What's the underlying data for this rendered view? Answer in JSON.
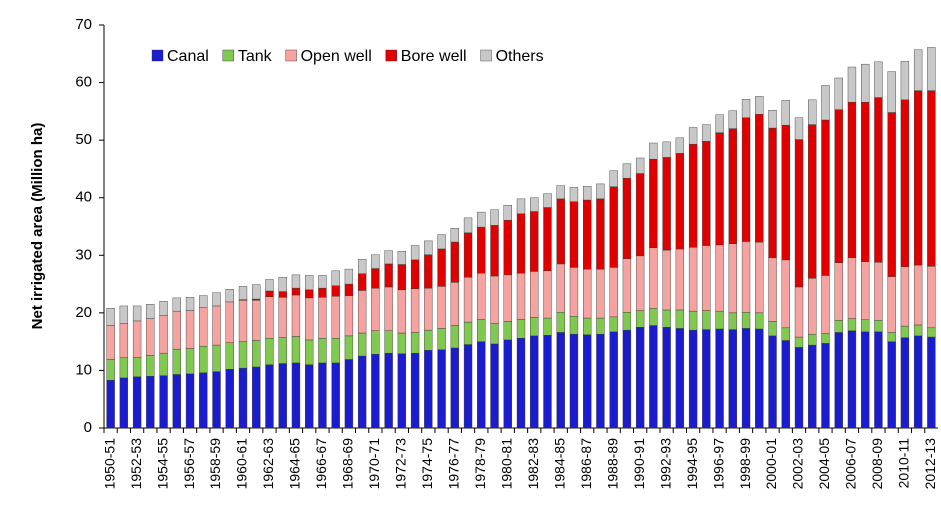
{
  "chart_data": {
    "type": "stacked_bar",
    "y_label": "Net irrigated area (Million ha)",
    "categories": [
      "1950-51",
      null,
      "1952-53",
      null,
      "1954-55",
      null,
      "1956-57",
      null,
      "1958-59",
      null,
      "1960-61",
      null,
      "1962-63",
      null,
      "1964-65",
      null,
      "1966-67",
      null,
      "1968-69",
      null,
      "1970-71",
      null,
      "1972-73",
      null,
      "1974-75",
      null,
      "1976-77",
      null,
      "1978-79",
      null,
      "1980-81",
      null,
      "1982-83",
      null,
      "1984-85",
      null,
      "1986-87",
      null,
      "1988-89",
      null,
      "1990-91",
      null,
      "1992-93",
      null,
      "1994-95",
      null,
      "1996-97",
      null,
      "1998-99",
      null,
      "2000-01",
      null,
      "2002-03",
      null,
      "2004-05",
      null,
      "2006-07",
      null,
      "2008-09",
      null,
      "2010-11",
      null,
      "2012-13"
    ],
    "series": [
      {
        "name": "Canal",
        "color": "#1c1ccf",
        "values": [
          8.3,
          8.7,
          8.9,
          9.0,
          9.1,
          9.3,
          9.4,
          9.6,
          9.8,
          10.2,
          10.4,
          10.6,
          11.0,
          11.2,
          11.3,
          11.0,
          11.3,
          11.3,
          11.9,
          12.5,
          12.8,
          13.0,
          12.9,
          13.0,
          13.5,
          13.6,
          13.9,
          14.5,
          15.0,
          14.6,
          15.3,
          15.6,
          16.0,
          16.1,
          16.6,
          16.3,
          16.2,
          16.3,
          16.7,
          17.0,
          17.5,
          17.8,
          17.5,
          17.3,
          17.0,
          17.1,
          17.2,
          17.1,
          17.3,
          17.2,
          16.0,
          15.2,
          14.0,
          14.4,
          14.7,
          16.6,
          16.9,
          16.7,
          16.7,
          15.0,
          15.7,
          16.0,
          15.8
        ]
      },
      {
        "name": "Tank",
        "color": "#80c850",
        "values": [
          3.6,
          3.5,
          3.4,
          3.6,
          3.9,
          4.4,
          4.4,
          4.6,
          4.6,
          4.6,
          4.6,
          4.6,
          4.6,
          4.5,
          4.6,
          4.3,
          4.3,
          4.3,
          4.1,
          4.0,
          4.1,
          3.9,
          3.6,
          3.6,
          3.5,
          3.7,
          3.9,
          3.9,
          3.9,
          3.6,
          3.2,
          3.3,
          3.2,
          3.0,
          3.5,
          3.1,
          2.9,
          2.8,
          2.6,
          3.1,
          2.9,
          3.0,
          3.0,
          3.2,
          3.3,
          3.3,
          3.1,
          2.9,
          2.8,
          2.8,
          2.5,
          2.2,
          1.8,
          1.9,
          1.7,
          2.1,
          2.1,
          2.1,
          2.0,
          1.6,
          2.0,
          1.9,
          1.6
        ]
      },
      {
        "name": "Open well",
        "color": "#f4a3a0",
        "values": [
          5.9,
          6.0,
          6.3,
          6.4,
          6.6,
          6.6,
          6.6,
          6.7,
          6.8,
          7.1,
          7.2,
          7.0,
          7.2,
          7.0,
          7.2,
          7.3,
          7.1,
          7.3,
          7.0,
          7.4,
          7.4,
          7.6,
          7.5,
          7.6,
          7.3,
          7.3,
          7.5,
          7.8,
          8.0,
          8.2,
          8.1,
          8.0,
          8.0,
          8.2,
          8.4,
          8.5,
          8.5,
          8.5,
          8.6,
          9.3,
          9.5,
          10.5,
          10.4,
          10.6,
          11.1,
          11.3,
          11.5,
          12.0,
          12.3,
          12.3,
          11.1,
          11.8,
          8.7,
          9.7,
          10.1,
          10.0,
          10.6,
          10.1,
          10.1,
          9.7,
          10.3,
          10.4,
          10.7
        ]
      },
      {
        "name": "Bore well",
        "color": "#e00000",
        "values": [
          0,
          0,
          0,
          0,
          0,
          0,
          0,
          0,
          0,
          0,
          0.1,
          0.2,
          1.0,
          1.0,
          1.2,
          1.4,
          1.6,
          1.8,
          2.0,
          2.9,
          3.4,
          4.0,
          4.4,
          5.0,
          5.8,
          6.5,
          7.0,
          7.7,
          8.0,
          8.8,
          9.5,
          10.3,
          10.4,
          11.0,
          11.3,
          11.4,
          12.0,
          12.2,
          14.0,
          14.0,
          14.3,
          15.4,
          16.1,
          16.6,
          17.9,
          18.1,
          19.5,
          20.0,
          21.5,
          22.2,
          22.5,
          23.4,
          25.6,
          26.7,
          27.0,
          26.6,
          27.0,
          27.7,
          28.6,
          28.5,
          29.0,
          30.3,
          30.5
        ]
      },
      {
        "name": "Others",
        "color": "#c8c8c8",
        "values": [
          3.0,
          3.0,
          2.6,
          2.5,
          2.4,
          2.3,
          2.3,
          2.1,
          2.3,
          2.2,
          2.3,
          2.5,
          2.0,
          2.5,
          2.3,
          2.5,
          2.2,
          2.6,
          2.6,
          2.5,
          2.4,
          2.3,
          2.3,
          2.5,
          2.4,
          2.5,
          2.4,
          2.6,
          2.6,
          2.7,
          2.6,
          2.6,
          2.4,
          2.4,
          2.3,
          2.5,
          2.4,
          2.6,
          2.8,
          2.5,
          2.7,
          2.8,
          2.7,
          2.7,
          2.9,
          2.9,
          3.1,
          3.1,
          3.2,
          3.1,
          3.1,
          4.3,
          3.8,
          4.3,
          6.0,
          5.5,
          6.1,
          6.6,
          6.2,
          7.1,
          6.7,
          7.1,
          7.5
        ]
      }
    ],
    "ylim": [
      0,
      70
    ],
    "yticks": [
      0,
      10,
      20,
      30,
      40,
      50,
      60,
      70
    ],
    "grid": false,
    "legend": "top-left"
  }
}
